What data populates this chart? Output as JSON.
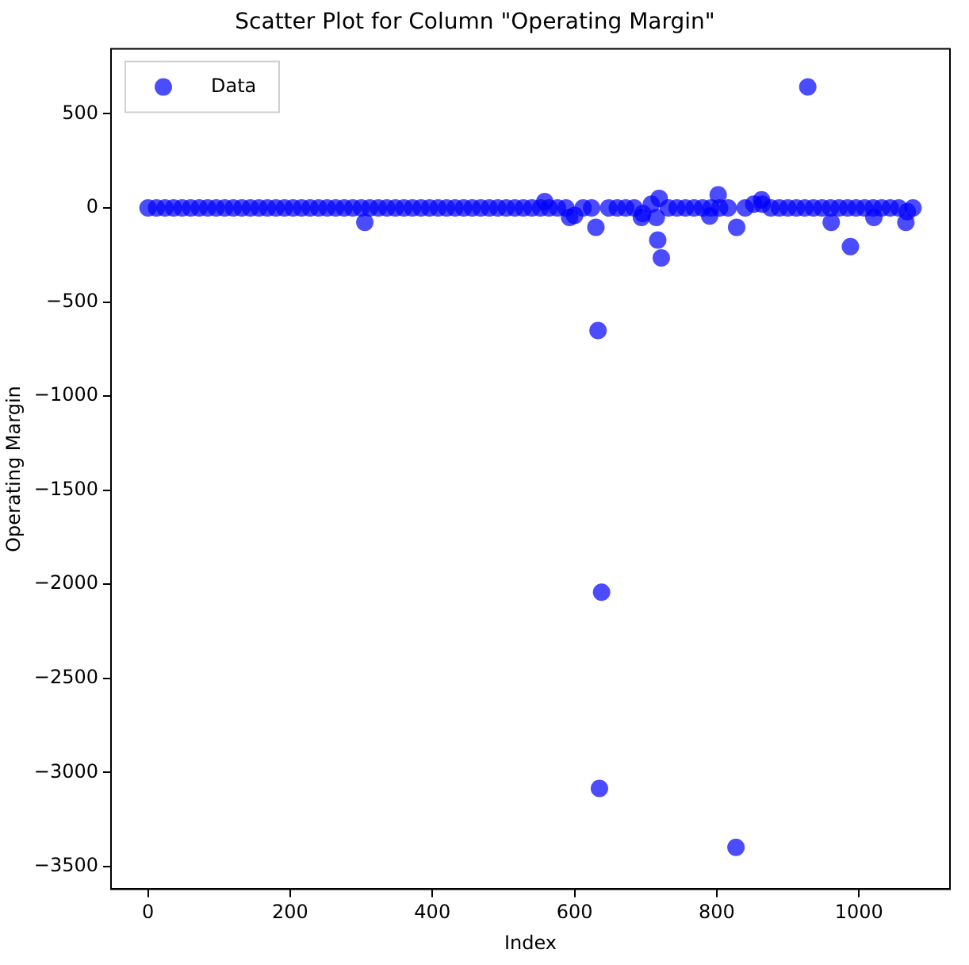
{
  "chart_data": {
    "type": "scatter",
    "title": "Scatter Plot for Column \"Operating Margin\"",
    "xlabel": "Index",
    "ylabel": "Operating Margin",
    "legend": "top left",
    "marker": "circle",
    "grid": false,
    "xlim": [
      -52,
      1128
    ],
    "ylim": [
      -3620,
      845
    ],
    "xticks": [
      0,
      200,
      400,
      600,
      800,
      1000
    ],
    "yticks": [
      500,
      0,
      -500,
      -1000,
      -1500,
      -2000,
      -2500,
      -3000,
      -3500
    ],
    "series": [
      {
        "name": "Data",
        "color": "#0000ff",
        "x": [
          0,
          12,
          24,
          36,
          48,
          60,
          72,
          84,
          96,
          108,
          120,
          132,
          144,
          156,
          168,
          180,
          192,
          204,
          216,
          228,
          240,
          252,
          264,
          276,
          288,
          300,
          305,
          312,
          324,
          336,
          348,
          360,
          372,
          384,
          396,
          408,
          420,
          432,
          444,
          456,
          468,
          480,
          492,
          504,
          516,
          528,
          540,
          552,
          558,
          564,
          576,
          588,
          593,
          600,
          612,
          624,
          630,
          633,
          638,
          635,
          648,
          660,
          672,
          684,
          694,
          696,
          708,
          715,
          717,
          719,
          722,
          732,
          744,
          756,
          768,
          780,
          790,
          792,
          802,
          804,
          816,
          828,
          827,
          840,
          852,
          863,
          864,
          876,
          888,
          900,
          912,
          924,
          928,
          936,
          948,
          960,
          961,
          972,
          984,
          988,
          996,
          1008,
          1020,
          1021,
          1032,
          1044,
          1056,
          1066,
          1068,
          1076
        ],
        "values": [
          0,
          0,
          0,
          0,
          0,
          0,
          0,
          0,
          0,
          0,
          0,
          0,
          0,
          0,
          0,
          0,
          0,
          0,
          0,
          0,
          0,
          0,
          0,
          0,
          0,
          0,
          -77,
          0,
          0,
          0,
          0,
          0,
          0,
          0,
          0,
          0,
          0,
          0,
          0,
          0,
          0,
          0,
          0,
          0,
          0,
          0,
          0,
          0,
          34,
          0,
          0,
          0,
          -51,
          -40,
          0,
          0,
          -103,
          -652,
          -2042,
          -3085,
          0,
          0,
          0,
          0,
          -51,
          -30,
          20,
          -51,
          -171,
          51,
          -266,
          0,
          0,
          0,
          0,
          0,
          -43,
          0,
          69,
          0,
          0,
          -103,
          -3398,
          0,
          20,
          43,
          20,
          0,
          0,
          0,
          0,
          0,
          643,
          0,
          0,
          0,
          -77,
          0,
          0,
          -206,
          0,
          0,
          0,
          -51,
          0,
          0,
          0,
          -77,
          -20,
          0
        ]
      }
    ]
  }
}
